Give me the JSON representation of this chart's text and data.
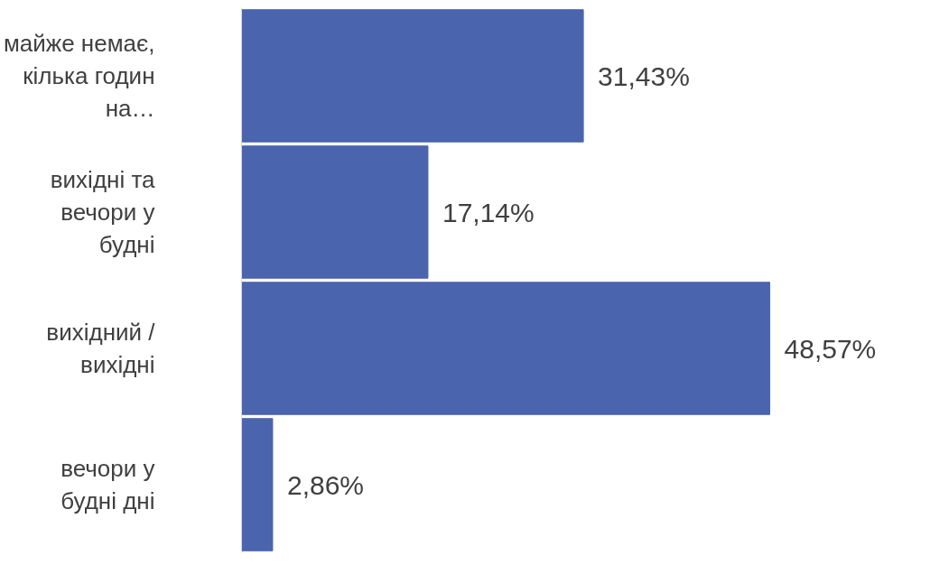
{
  "chart_data": {
    "type": "bar",
    "orientation": "horizontal",
    "categories": [
      "майже немає, кілька годин на…",
      "вихідні та вечори у будні",
      "вихідний / вихідні",
      "вечори у будні дні"
    ],
    "values": [
      31.43,
      17.14,
      48.57,
      2.86
    ],
    "value_labels": [
      "31,43%",
      "17,14%",
      "48,57%",
      "2,86%"
    ],
    "color": "#4a65ae",
    "grid": false
  }
}
